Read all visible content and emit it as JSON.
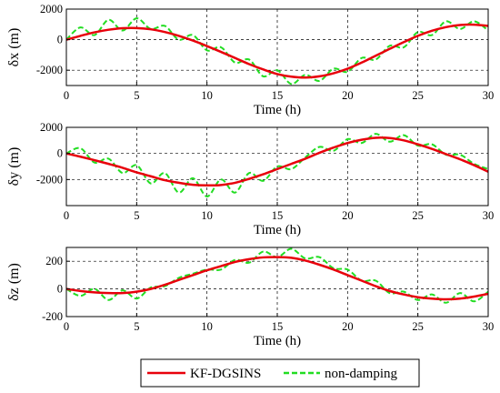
{
  "legend": {
    "entries": [
      {
        "label": "KF-DGSINS",
        "color": "#e8000b",
        "style": "solid"
      },
      {
        "label": "non-damping",
        "color": "#22dd22",
        "style": "dashed"
      }
    ]
  },
  "chart_data": [
    {
      "type": "line",
      "xlabel": "Time (h)",
      "ylabel": "δx (m)",
      "xlim": [
        0,
        30
      ],
      "ylim": [
        -3000,
        2000
      ],
      "xticks": [
        0,
        5,
        10,
        15,
        20,
        25,
        30
      ],
      "yticks": [
        -2000,
        0,
        2000
      ],
      "xtick_labels": [
        "0",
        "5",
        "10",
        "15",
        "20",
        "25",
        "30"
      ],
      "ytick_labels": [
        "-2000",
        "0",
        "2000"
      ],
      "grid": true,
      "x": [
        0,
        1,
        2,
        3,
        4,
        5,
        6,
        7,
        8,
        9,
        10,
        11,
        12,
        13,
        14,
        15,
        16,
        17,
        18,
        19,
        20,
        21,
        22,
        23,
        24,
        25,
        26,
        27,
        28,
        29,
        30
      ],
      "series": [
        {
          "name": "KF-DGSINS",
          "color": "#e8000b",
          "values": [
            0,
            250,
            480,
            650,
            750,
            760,
            680,
            500,
            250,
            -60,
            -420,
            -800,
            -1200,
            -1600,
            -1950,
            -2250,
            -2420,
            -2480,
            -2400,
            -2200,
            -1900,
            -1500,
            -1050,
            -600,
            -160,
            250,
            580,
            820,
            960,
            980,
            900
          ]
        },
        {
          "name": "non-damping",
          "color": "#22dd22",
          "values": [
            0,
            800,
            300,
            1300,
            600,
            1400,
            700,
            900,
            0,
            300,
            -700,
            -500,
            -1500,
            -1300,
            -2400,
            -2000,
            -2900,
            -2300,
            -2700,
            -1900,
            -2100,
            -1200,
            -1300,
            -400,
            -500,
            500,
            300,
            1200,
            700,
            1200,
            600
          ]
        }
      ]
    },
    {
      "type": "line",
      "xlabel": "Time (h)",
      "ylabel": "δy (m)",
      "xlim": [
        0,
        30
      ],
      "ylim": [
        -4000,
        2000
      ],
      "xticks": [
        0,
        5,
        10,
        15,
        20,
        25,
        30
      ],
      "yticks": [
        -2000,
        0,
        2000
      ],
      "xtick_labels": [
        "0",
        "5",
        "10",
        "15",
        "20",
        "25",
        "30"
      ],
      "ytick_labels": [
        "-2000",
        "0",
        "2000"
      ],
      "grid": true,
      "x": [
        0,
        1,
        2,
        3,
        4,
        5,
        6,
        7,
        8,
        9,
        10,
        11,
        12,
        13,
        14,
        15,
        16,
        17,
        18,
        19,
        20,
        21,
        22,
        23,
        24,
        25,
        26,
        27,
        28,
        29,
        30
      ],
      "series": [
        {
          "name": "KF-DGSINS",
          "color": "#e8000b",
          "values": [
            0,
            -250,
            -520,
            -800,
            -1100,
            -1450,
            -1750,
            -2050,
            -2250,
            -2400,
            -2450,
            -2420,
            -2250,
            -1950,
            -1600,
            -1200,
            -800,
            -400,
            50,
            450,
            800,
            1050,
            1200,
            1180,
            1000,
            700,
            350,
            -50,
            -450,
            -900,
            -1400
          ]
        },
        {
          "name": "non-damping",
          "color": "#22dd22",
          "values": [
            0,
            400,
            -700,
            -400,
            -1500,
            -900,
            -2300,
            -1500,
            -3000,
            -1900,
            -3300,
            -2000,
            -3000,
            -1500,
            -2100,
            -1000,
            -1200,
            -300,
            500,
            200,
            1100,
            800,
            1500,
            900,
            1400,
            600,
            700,
            -100,
            -100,
            -800,
            -1200
          ]
        }
      ]
    },
    {
      "type": "line",
      "xlabel": "Time (h)",
      "ylabel": "δz (m)",
      "xlim": [
        0,
        30
      ],
      "ylim": [
        -200,
        300
      ],
      "xticks": [
        0,
        5,
        10,
        15,
        20,
        25,
        30
      ],
      "yticks": [
        -200,
        0,
        200
      ],
      "xtick_labels": [
        "0",
        "5",
        "10",
        "15",
        "20",
        "25",
        "30"
      ],
      "ytick_labels": [
        "-200",
        "0",
        "200"
      ],
      "grid": true,
      "x": [
        0,
        1,
        2,
        3,
        4,
        5,
        6,
        7,
        8,
        9,
        10,
        11,
        12,
        13,
        14,
        15,
        16,
        17,
        18,
        19,
        20,
        21,
        22,
        23,
        24,
        25,
        26,
        27,
        28,
        29,
        30
      ],
      "series": [
        {
          "name": "KF-DGSINS",
          "color": "#e8000b",
          "values": [
            0,
            -15,
            -25,
            -30,
            -30,
            -20,
            0,
            30,
            65,
            100,
            135,
            165,
            195,
            215,
            228,
            230,
            225,
            205,
            175,
            140,
            100,
            60,
            20,
            -15,
            -40,
            -60,
            -70,
            -75,
            -70,
            -55,
            -35
          ]
        },
        {
          "name": "non-damping",
          "color": "#22dd22",
          "values": [
            0,
            -50,
            0,
            -80,
            -10,
            -70,
            10,
            20,
            80,
            110,
            140,
            140,
            210,
            190,
            270,
            230,
            290,
            220,
            230,
            150,
            140,
            60,
            60,
            -30,
            -20,
            -80,
            -40,
            -100,
            -30,
            -90,
            -20
          ]
        }
      ]
    }
  ]
}
